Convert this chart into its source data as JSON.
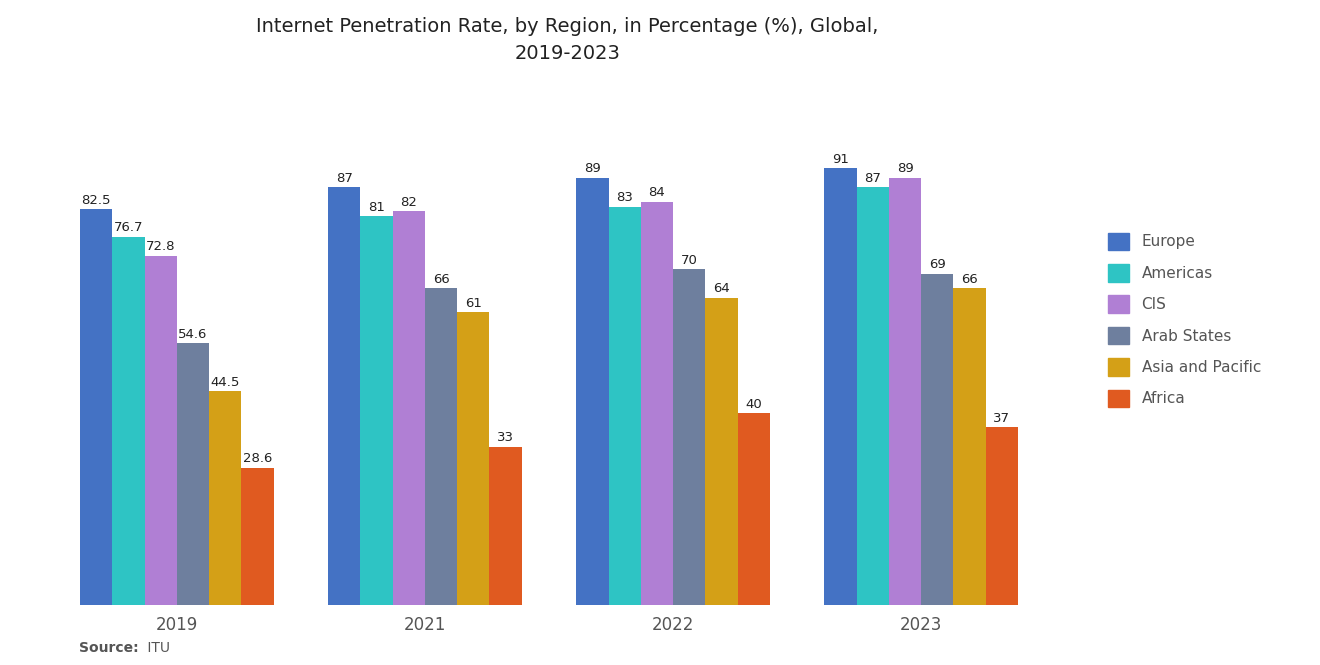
{
  "title": "Internet Penetration Rate, by Region, in Percentage (%), Global,\n2019-2023",
  "years": [
    "2019",
    "2021",
    "2022",
    "2023"
  ],
  "regions": [
    "Europe",
    "Americas",
    "CIS",
    "Arab States",
    "Asia and Pacific",
    "Africa"
  ],
  "colors": [
    "#4472c4",
    "#2ec4c4",
    "#b07fd4",
    "#6e7f9e",
    "#d4a017",
    "#e05a20"
  ],
  "values": {
    "Europe": [
      82.5,
      87,
      89,
      91
    ],
    "Americas": [
      76.7,
      81,
      83,
      87
    ],
    "CIS": [
      72.8,
      82,
      84,
      89
    ],
    "Arab States": [
      54.6,
      66,
      70,
      69
    ],
    "Asia and Pacific": [
      44.5,
      61,
      64,
      66
    ],
    "Africa": [
      28.6,
      33,
      40,
      37
    ]
  },
  "bar_labels": {
    "Europe": [
      "82.5",
      "87",
      "89",
      "91"
    ],
    "Americas": [
      "76.7",
      "81",
      "83",
      "87"
    ],
    "CIS": [
      "72.8",
      "82",
      "84",
      "89"
    ],
    "Arab States": [
      "54.6",
      "66",
      "70",
      "69"
    ],
    "Asia and Pacific": [
      "44.5",
      "61",
      "64",
      "66"
    ],
    "Africa": [
      "28.6",
      "33",
      "40",
      "37"
    ]
  },
  "source_bold": "Source:",
  "source_regular": " ITU",
  "background_color": "#ffffff",
  "plot_bg_color": "#ffffff",
  "title_fontsize": 14,
  "label_fontsize": 9.5,
  "tick_fontsize": 12,
  "legend_fontsize": 11
}
